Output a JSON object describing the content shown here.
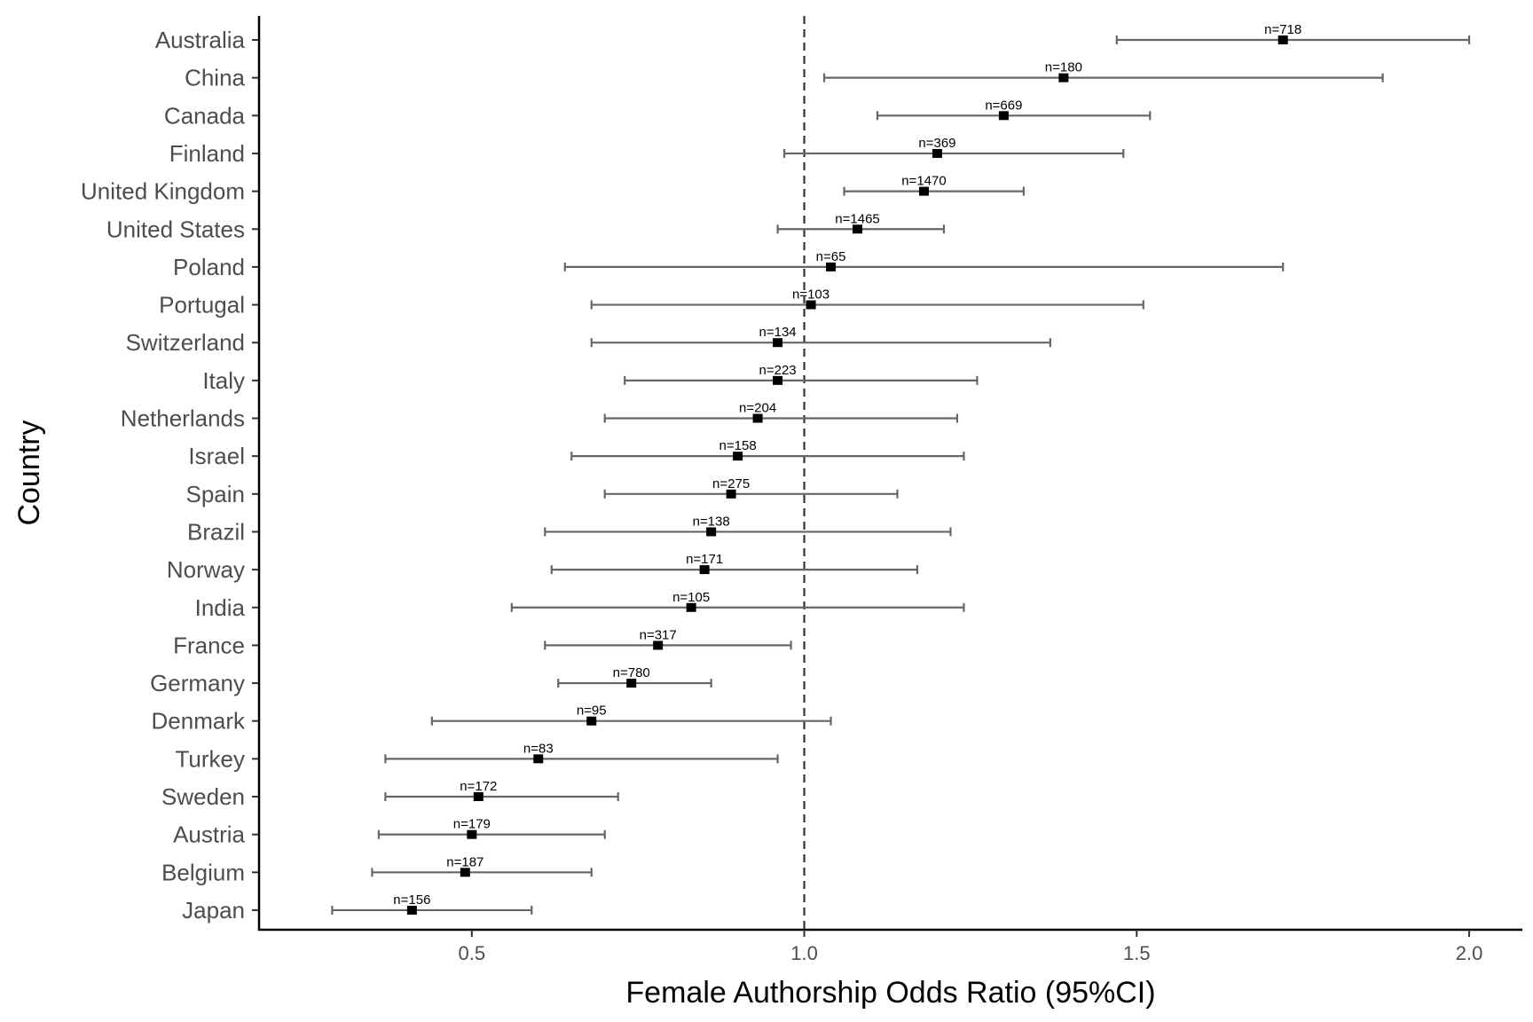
{
  "chart_data": {
    "type": "forest",
    "xlabel": "Female Authorship Odds Ratio (95%CI)",
    "ylabel": "Country",
    "xlim": [
      0.18,
      2.08
    ],
    "xticks": [
      0.5,
      1.0,
      1.5,
      2.0
    ],
    "xtick_labels": [
      "0.5",
      "1.0",
      "1.5",
      "2.0"
    ],
    "reference_line": 1.0,
    "grid": false,
    "colors": {
      "ci": "#666666",
      "point": "#000000",
      "axis": "#000000",
      "reference": "#333333"
    },
    "rows": [
      {
        "country": "Australia",
        "or": 1.72,
        "lo": 1.47,
        "hi": 2.0,
        "label": "n=718"
      },
      {
        "country": "China",
        "or": 1.39,
        "lo": 1.03,
        "hi": 1.87,
        "label": "n=180"
      },
      {
        "country": "Canada",
        "or": 1.3,
        "lo": 1.11,
        "hi": 1.52,
        "label": "n=669"
      },
      {
        "country": "Finland",
        "or": 1.2,
        "lo": 0.97,
        "hi": 1.48,
        "label": "n=369"
      },
      {
        "country": "United Kingdom",
        "or": 1.18,
        "lo": 1.06,
        "hi": 1.33,
        "label": "n=1470"
      },
      {
        "country": "United States",
        "or": 1.08,
        "lo": 0.96,
        "hi": 1.21,
        "label": "n=1465"
      },
      {
        "country": "Poland",
        "or": 1.04,
        "lo": 0.64,
        "hi": 1.72,
        "label": "n=65"
      },
      {
        "country": "Portugal",
        "or": 1.01,
        "lo": 0.68,
        "hi": 1.51,
        "label": "n=103"
      },
      {
        "country": "Switzerland",
        "or": 0.96,
        "lo": 0.68,
        "hi": 1.37,
        "label": "n=134"
      },
      {
        "country": "Italy",
        "or": 0.96,
        "lo": 0.73,
        "hi": 1.26,
        "label": "n=223"
      },
      {
        "country": "Netherlands",
        "or": 0.93,
        "lo": 0.7,
        "hi": 1.23,
        "label": "n=204"
      },
      {
        "country": "Israel",
        "or": 0.9,
        "lo": 0.65,
        "hi": 1.24,
        "label": "n=158"
      },
      {
        "country": "Spain",
        "or": 0.89,
        "lo": 0.7,
        "hi": 1.14,
        "label": "n=275"
      },
      {
        "country": "Brazil",
        "or": 0.86,
        "lo": 0.61,
        "hi": 1.22,
        "label": "n=138"
      },
      {
        "country": "Norway",
        "or": 0.85,
        "lo": 0.62,
        "hi": 1.17,
        "label": "n=171"
      },
      {
        "country": "India",
        "or": 0.83,
        "lo": 0.56,
        "hi": 1.24,
        "label": "n=105"
      },
      {
        "country": "France",
        "or": 0.78,
        "lo": 0.61,
        "hi": 0.98,
        "label": "n=317"
      },
      {
        "country": "Germany",
        "or": 0.74,
        "lo": 0.63,
        "hi": 0.86,
        "label": "n=780"
      },
      {
        "country": "Denmark",
        "or": 0.68,
        "lo": 0.44,
        "hi": 1.04,
        "label": "n=95"
      },
      {
        "country": "Turkey",
        "or": 0.6,
        "lo": 0.37,
        "hi": 0.96,
        "label": "n=83"
      },
      {
        "country": "Sweden",
        "or": 0.51,
        "lo": 0.37,
        "hi": 0.72,
        "label": "n=172"
      },
      {
        "country": "Austria",
        "or": 0.5,
        "lo": 0.36,
        "hi": 0.7,
        "label": "n=179"
      },
      {
        "country": "Belgium",
        "or": 0.49,
        "lo": 0.35,
        "hi": 0.68,
        "label": "n=187"
      },
      {
        "country": "Japan",
        "or": 0.41,
        "lo": 0.29,
        "hi": 0.59,
        "label": "n=156"
      }
    ]
  }
}
